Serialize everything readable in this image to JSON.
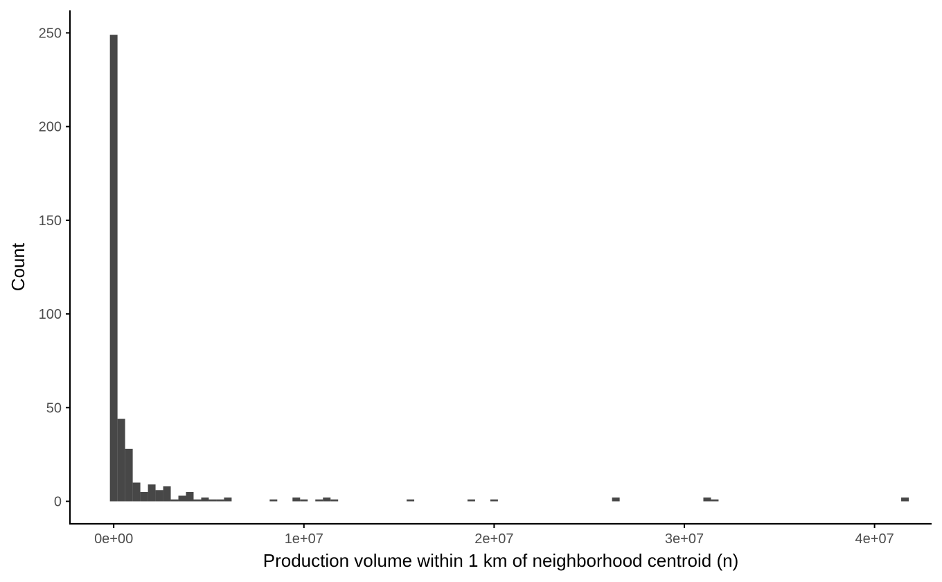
{
  "chart_data": {
    "type": "bar",
    "title": "",
    "xlabel": "Production volume within 1 km of neighborhood centroid (n)",
    "ylabel": "Count",
    "xlim": [
      -2300000,
      43000000
    ],
    "ylim": [
      -12,
      262
    ],
    "x_ticks": [
      0,
      10000000,
      20000000,
      30000000,
      40000000
    ],
    "x_tick_labels": [
      "0e+00",
      "1e+07",
      "2e+07",
      "3e+07",
      "4e+07"
    ],
    "y_ticks": [
      0,
      50,
      100,
      150,
      200,
      250
    ],
    "y_tick_labels": [
      "0",
      "50",
      "100",
      "150",
      "200",
      "250"
    ],
    "bin_width": 400000,
    "bins": [
      {
        "x": 0,
        "count": 249
      },
      {
        "x": 400000,
        "count": 44
      },
      {
        "x": 800000,
        "count": 28
      },
      {
        "x": 1200000,
        "count": 10
      },
      {
        "x": 1600000,
        "count": 5
      },
      {
        "x": 2000000,
        "count": 9
      },
      {
        "x": 2400000,
        "count": 6
      },
      {
        "x": 2800000,
        "count": 8
      },
      {
        "x": 3200000,
        "count": 1
      },
      {
        "x": 3600000,
        "count": 3
      },
      {
        "x": 4000000,
        "count": 5
      },
      {
        "x": 4400000,
        "count": 1
      },
      {
        "x": 4800000,
        "count": 2
      },
      {
        "x": 5200000,
        "count": 1
      },
      {
        "x": 5600000,
        "count": 1
      },
      {
        "x": 6000000,
        "count": 2
      },
      {
        "x": 8400000,
        "count": 1
      },
      {
        "x": 9600000,
        "count": 2
      },
      {
        "x": 10000000,
        "count": 1
      },
      {
        "x": 10800000,
        "count": 1
      },
      {
        "x": 11200000,
        "count": 2
      },
      {
        "x": 11600000,
        "count": 1
      },
      {
        "x": 15600000,
        "count": 1
      },
      {
        "x": 18800000,
        "count": 1
      },
      {
        "x": 20000000,
        "count": 1
      },
      {
        "x": 26400000,
        "count": 2
      },
      {
        "x": 31200000,
        "count": 2
      },
      {
        "x": 31600000,
        "count": 1
      },
      {
        "x": 41600000,
        "count": 2
      }
    ],
    "bar_color": "#474747",
    "grid": false,
    "legend": "none"
  }
}
